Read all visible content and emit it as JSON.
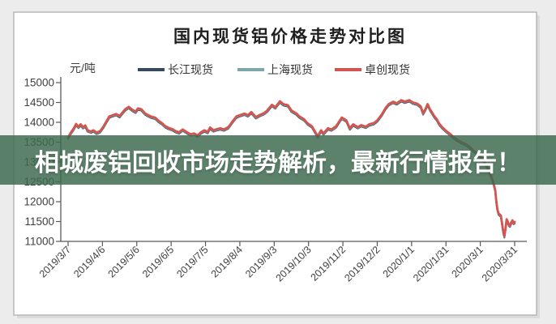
{
  "banner": {
    "text": "相城废铝回收市场走势解析，最新行情报告！",
    "background": "rgba(62,106,79,0.84)",
    "text_color": "#ffffff"
  },
  "chart_data": {
    "type": "line",
    "title": "国内现货铝价格走势对比图",
    "y_unit": "元/吨",
    "ylabel": "元/吨",
    "xlabel": "",
    "ylim": [
      11000,
      15000
    ],
    "y_ticks": [
      15000,
      14500,
      14000,
      13500,
      13000,
      12500,
      12000,
      11500,
      11000
    ],
    "x_tick_labels": [
      "2019/3/7",
      "2019/4/6",
      "2019/5/6",
      "2019/6/5",
      "2019/7/5",
      "2019/8/4",
      "2019/9/3",
      "2019/10/3",
      "2019/11/2",
      "2019/12/2",
      "2020/1/1",
      "2020/1/31",
      "2020/3/1",
      "2020/3/31"
    ],
    "x_range_days": [
      0,
      390
    ],
    "grid": false,
    "legend_position": "top",
    "style": {
      "axis_color": "#595959",
      "label_color": "#3f3f3f",
      "title_color": "#1f1f1f",
      "panel_background": "#ffffff",
      "page_background": "#ececec"
    },
    "series": [
      {
        "name": "长江现货",
        "color": "#37495c",
        "visual_offset": -35,
        "stroke_width": 2.2
      },
      {
        "name": "上海现货",
        "color": "#7fa6ad",
        "visual_offset": -18,
        "stroke_width": 2.2
      },
      {
        "name": "卓创现货",
        "color": "#d4544e",
        "visual_offset": 0,
        "stroke_width": 2.8
      }
    ],
    "note": "三条价格曲线基本重合，红色(卓创现货)绘于最上层；points为 [自2019/3/7起天数, 价格元/吨]",
    "points_day_value": [
      [
        0,
        13620
      ],
      [
        2,
        13720
      ],
      [
        5,
        13850
      ],
      [
        7,
        13960
      ],
      [
        9,
        13890
      ],
      [
        11,
        13950
      ],
      [
        13,
        13880
      ],
      [
        15,
        13920
      ],
      [
        17,
        13800
      ],
      [
        20,
        13770
      ],
      [
        22,
        13800
      ],
      [
        25,
        13740
      ],
      [
        28,
        13780
      ],
      [
        31,
        13900
      ],
      [
        34,
        14050
      ],
      [
        36,
        14150
      ],
      [
        39,
        14180
      ],
      [
        42,
        14210
      ],
      [
        45,
        14160
      ],
      [
        47,
        14230
      ],
      [
        50,
        14330
      ],
      [
        53,
        14390
      ],
      [
        56,
        14320
      ],
      [
        59,
        14270
      ],
      [
        61,
        14350
      ],
      [
        64,
        14330
      ],
      [
        67,
        14230
      ],
      [
        70,
        14180
      ],
      [
        73,
        14140
      ],
      [
        76,
        14120
      ],
      [
        79,
        14040
      ],
      [
        82,
        13980
      ],
      [
        85,
        13900
      ],
      [
        88,
        13860
      ],
      [
        91,
        13830
      ],
      [
        94,
        13780
      ],
      [
        97,
        13750
      ],
      [
        100,
        13820
      ],
      [
        104,
        13750
      ],
      [
        107,
        13700
      ],
      [
        110,
        13720
      ],
      [
        113,
        13670
      ],
      [
        116,
        13750
      ],
      [
        119,
        13800
      ],
      [
        122,
        13760
      ],
      [
        124,
        13870
      ],
      [
        127,
        13800
      ],
      [
        130,
        13830
      ],
      [
        133,
        13850
      ],
      [
        136,
        13820
      ],
      [
        140,
        13880
      ],
      [
        143,
        14000
      ],
      [
        147,
        14150
      ],
      [
        150,
        14180
      ],
      [
        154,
        14220
      ],
      [
        157,
        14180
      ],
      [
        160,
        14260
      ],
      [
        164,
        14130
      ],
      [
        167,
        14180
      ],
      [
        171,
        14230
      ],
      [
        174,
        14300
      ],
      [
        178,
        14440
      ],
      [
        181,
        14380
      ],
      [
        185,
        14530
      ],
      [
        188,
        14460
      ],
      [
        192,
        14430
      ],
      [
        195,
        14300
      ],
      [
        199,
        14230
      ],
      [
        202,
        14150
      ],
      [
        206,
        14080
      ],
      [
        209,
        13980
      ],
      [
        213,
        13900
      ],
      [
        216,
        13750
      ],
      [
        218,
        13650
      ],
      [
        221,
        13800
      ],
      [
        223,
        13720
      ],
      [
        227,
        13850
      ],
      [
        230,
        13820
      ],
      [
        234,
        13900
      ],
      [
        239,
        14120
      ],
      [
        243,
        14050
      ],
      [
        246,
        13850
      ],
      [
        249,
        13950
      ],
      [
        253,
        13880
      ],
      [
        256,
        13930
      ],
      [
        260,
        13890
      ],
      [
        263,
        13950
      ],
      [
        267,
        13980
      ],
      [
        270,
        14050
      ],
      [
        274,
        14200
      ],
      [
        277,
        14350
      ],
      [
        280,
        14460
      ],
      [
        284,
        14520
      ],
      [
        287,
        14480
      ],
      [
        291,
        14560
      ],
      [
        294,
        14520
      ],
      [
        298,
        14560
      ],
      [
        301,
        14500
      ],
      [
        305,
        14470
      ],
      [
        308,
        14400
      ],
      [
        310,
        14230
      ],
      [
        312,
        14330
      ],
      [
        314,
        14460
      ],
      [
        316,
        14330
      ],
      [
        318,
        14240
      ],
      [
        320,
        14150
      ],
      [
        322,
        14080
      ],
      [
        324,
        13970
      ],
      [
        327,
        13870
      ],
      [
        330,
        13790
      ],
      [
        334,
        13700
      ],
      [
        337,
        13620
      ],
      [
        340,
        13560
      ],
      [
        343,
        13510
      ],
      [
        346,
        13470
      ],
      [
        349,
        13420
      ],
      [
        352,
        13350
      ],
      [
        354,
        13290
      ],
      [
        357,
        13230
      ],
      [
        360,
        13150
      ],
      [
        363,
        13030
      ],
      [
        366,
        12880
      ],
      [
        369,
        12680
      ],
      [
        371,
        12520
      ],
      [
        373,
        12300
      ],
      [
        374,
        12000
      ],
      [
        375,
        11800
      ],
      [
        376,
        11700
      ],
      [
        377,
        11680
      ],
      [
        378,
        11650
      ],
      [
        379,
        11450
      ],
      [
        380,
        11250
      ],
      [
        381,
        11130
      ],
      [
        382,
        11320
      ],
      [
        383,
        11560
      ],
      [
        384,
        11500
      ],
      [
        385,
        11420
      ],
      [
        386,
        11400
      ],
      [
        387,
        11480
      ],
      [
        388,
        11530
      ],
      [
        389,
        11470
      ],
      [
        390,
        11490
      ]
    ]
  }
}
